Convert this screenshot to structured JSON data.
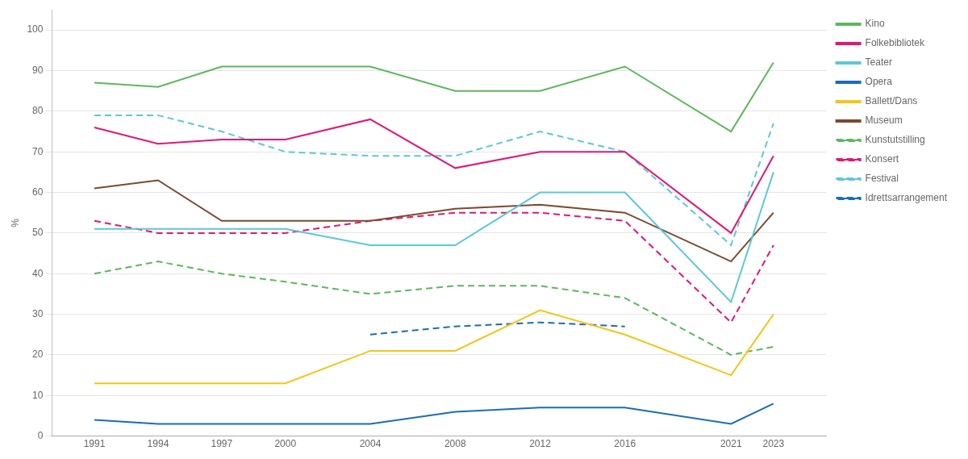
{
  "chart_data": {
    "type": "line",
    "y_label": "%",
    "x": [
      1991,
      1994,
      1997,
      2000,
      2004,
      2008,
      2012,
      2016,
      2021,
      2023
    ],
    "series": [
      {
        "name": "Kino",
        "color": "#5cb85c",
        "line_style": "solid",
        "values": [
          87,
          86,
          91,
          91,
          91,
          85,
          85,
          91,
          75,
          92
        ]
      },
      {
        "name": "Folkebibliotek",
        "color": "#e0177b",
        "line_style": "solid",
        "values": [
          76,
          72,
          73,
          73,
          78,
          66,
          70,
          70,
          50,
          69
        ]
      },
      {
        "name": "Teater",
        "color": "#5bc8d8",
        "line_style": "solid",
        "values": [
          51,
          51,
          51,
          51,
          47,
          47,
          60,
          60,
          33,
          65
        ]
      },
      {
        "name": "Opera",
        "color": "#1a6db5",
        "line_style": "solid",
        "values": [
          4,
          3,
          3,
          3,
          3,
          6,
          7,
          7,
          3,
          8
        ]
      },
      {
        "name": "Ballett/Dans",
        "color": "#f5c518",
        "line_style": "solid",
        "values": [
          13,
          13,
          13,
          13,
          21,
          21,
          31,
          25,
          15,
          30
        ]
      },
      {
        "name": "Museum",
        "color": "#7b4a2d",
        "line_style": "solid",
        "values": [
          61,
          63,
          53,
          53,
          53,
          56,
          57,
          55,
          43,
          55
        ]
      },
      {
        "name": "Kunstutstilling",
        "color": "#5cb85c",
        "line_style": "dashed",
        "values": [
          40,
          43,
          40,
          38,
          35,
          37,
          37,
          34,
          20,
          22
        ]
      },
      {
        "name": "Konsert",
        "color": "#e0177b",
        "line_style": "dashed",
        "values": [
          53,
          50,
          50,
          50,
          53,
          55,
          55,
          53,
          28,
          47
        ]
      },
      {
        "name": "Festival",
        "color": "#5bc8d8",
        "line_style": "dashed",
        "values": [
          79,
          79,
          75,
          70,
          69,
          69,
          75,
          70,
          47,
          77
        ]
      },
      {
        "name": "Idrettsarrangement",
        "color": "#1a6db5",
        "line_style": "dashed",
        "values": [
          null,
          null,
          null,
          null,
          25,
          27,
          28,
          27,
          null,
          null
        ]
      }
    ],
    "xlim": [
      1989,
      2025.5
    ],
    "xticks": [
      1991,
      1994,
      1997,
      2000,
      2004,
      2008,
      2012,
      2016,
      2021,
      2023
    ],
    "ylim": [
      0,
      105
    ],
    "yticks": [
      0,
      10,
      20,
      30,
      40,
      50,
      60,
      70,
      80,
      90,
      100
    ],
    "grid": "y",
    "legend": "right"
  }
}
